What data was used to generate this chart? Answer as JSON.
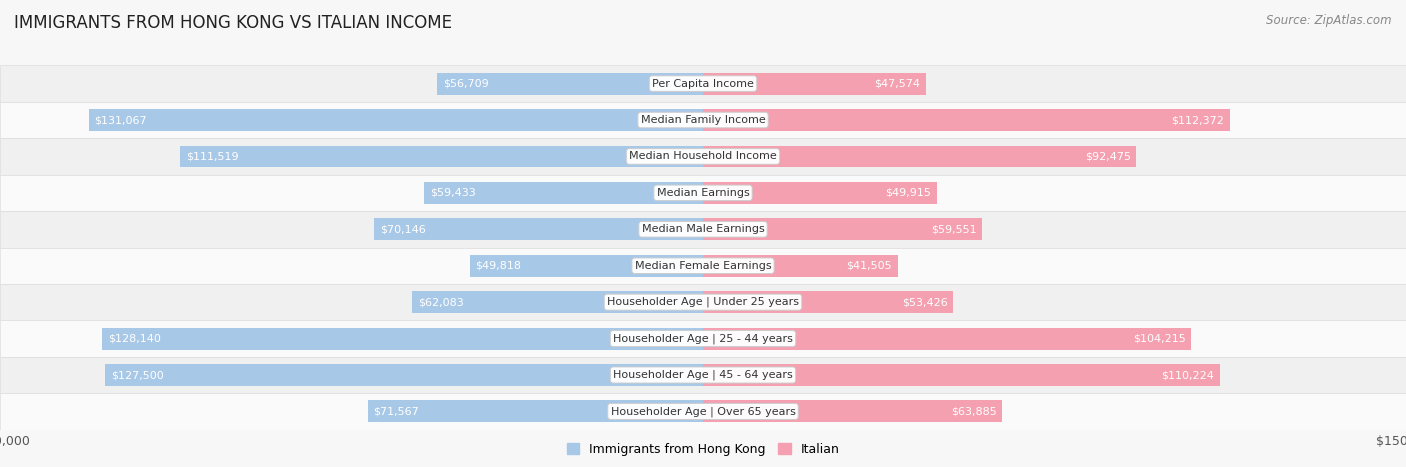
{
  "title": "IMMIGRANTS FROM HONG KONG VS ITALIAN INCOME",
  "source": "Source: ZipAtlas.com",
  "categories": [
    "Per Capita Income",
    "Median Family Income",
    "Median Household Income",
    "Median Earnings",
    "Median Male Earnings",
    "Median Female Earnings",
    "Householder Age | Under 25 years",
    "Householder Age | 25 - 44 years",
    "Householder Age | 45 - 64 years",
    "Householder Age | Over 65 years"
  ],
  "hk_values": [
    56709,
    131067,
    111519,
    59433,
    70146,
    49818,
    62083,
    128140,
    127500,
    71567
  ],
  "it_values": [
    47574,
    112372,
    92475,
    49915,
    59551,
    41505,
    53426,
    104215,
    110224,
    63885
  ],
  "hk_color": "#a8c8e8",
  "it_color": "#f4a0b0",
  "hk_label": "Immigrants from Hong Kong",
  "it_label": "Italian",
  "x_max": 150000,
  "bg_color": "#f7f7f7",
  "row_bg_even": "#f0f0f0",
  "row_bg_odd": "#fafafa",
  "bar_height": 0.6,
  "label_color_inside": "#ffffff",
  "label_color_outside": "#555555",
  "inside_threshold": 0.22,
  "title_fontsize": 12,
  "source_fontsize": 8.5,
  "axis_label_fontsize": 9,
  "category_fontsize": 8,
  "value_fontsize": 8
}
